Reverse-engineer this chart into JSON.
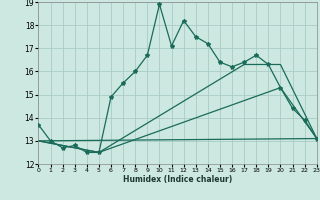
{
  "xlabel": "Humidex (Indice chaleur)",
  "bg_color": "#cce8e0",
  "grid_color": "#aaccc4",
  "line_color": "#1a6b5a",
  "xmin": 0,
  "xmax": 23,
  "ymin": 12,
  "ymax": 19,
  "line1_x": [
    0,
    1,
    2,
    3,
    4,
    5,
    6,
    7,
    8,
    9,
    10,
    11,
    12,
    13,
    14,
    15,
    16,
    17,
    18,
    19,
    20,
    21,
    22,
    23
  ],
  "line1_y": [
    13.7,
    13.0,
    12.7,
    12.8,
    12.5,
    12.5,
    14.9,
    15.5,
    16.0,
    16.7,
    18.9,
    17.1,
    18.2,
    17.5,
    17.2,
    16.4,
    16.2,
    16.4,
    16.7,
    16.3,
    15.3,
    14.4,
    13.9,
    13.1
  ],
  "line2_x": [
    0,
    5,
    20,
    23
  ],
  "line2_y": [
    13.0,
    12.5,
    15.3,
    13.1
  ],
  "line3_x": [
    0,
    23
  ],
  "line3_y": [
    13.0,
    13.1
  ],
  "line4_x": [
    0,
    5,
    17,
    20,
    23
  ],
  "line4_y": [
    13.0,
    12.5,
    16.3,
    16.3,
    13.1
  ]
}
